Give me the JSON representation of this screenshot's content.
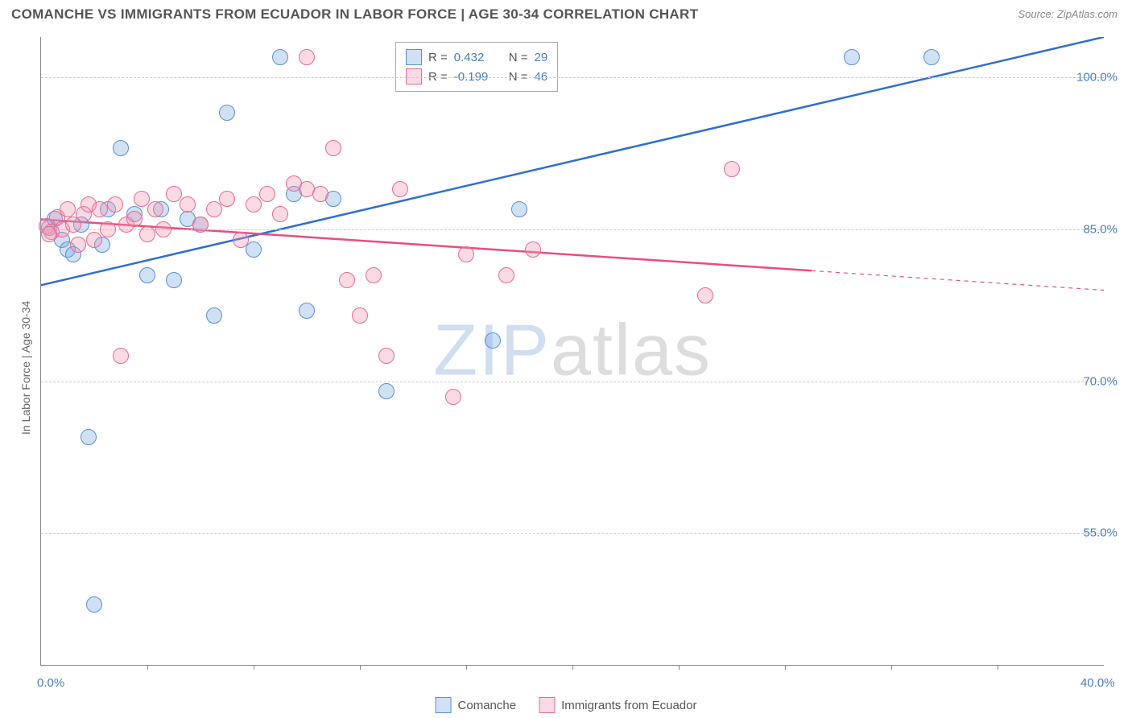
{
  "title": "COMANCHE VS IMMIGRANTS FROM ECUADOR IN LABOR FORCE | AGE 30-34 CORRELATION CHART",
  "source": "Source: ZipAtlas.com",
  "ylabel": "In Labor Force | Age 30-34",
  "watermark": {
    "part1": "ZIP",
    "part2": "atlas"
  },
  "chart": {
    "type": "scatter",
    "background_color": "#ffffff",
    "grid_color": "#cccccc",
    "axis_color": "#888888",
    "label_color": "#4a7ebb",
    "xlim": [
      0,
      40
    ],
    "ylim": [
      42,
      104
    ],
    "x_ticks_major": [
      0,
      40
    ],
    "x_ticks_minor": [
      4,
      8,
      12,
      16,
      20,
      24,
      28,
      32,
      36
    ],
    "x_tick_labels": {
      "0": "0.0%",
      "40": "40.0%"
    },
    "y_ticks": [
      55,
      70,
      85,
      100
    ],
    "y_tick_labels": {
      "55": "55.0%",
      "70": "70.0%",
      "85": "85.0%",
      "100": "100.0%"
    },
    "marker_radius": 9,
    "marker_stroke_width": 1.3,
    "line_width": 2.5,
    "series": [
      {
        "name": "Comanche",
        "fill": "rgba(120,168,224,0.35)",
        "stroke": "#5a8fd6",
        "line_color": "#2f6fd0",
        "R": "0.432",
        "N": "29",
        "trend": {
          "x1": 0,
          "y1": 79.5,
          "x2": 40,
          "y2": 104,
          "solid_until_x": 40
        },
        "points": [
          [
            0.3,
            85.2
          ],
          [
            0.5,
            86.0
          ],
          [
            0.8,
            84.0
          ],
          [
            1.0,
            83.0
          ],
          [
            1.2,
            82.5
          ],
          [
            1.5,
            85.5
          ],
          [
            1.8,
            64.5
          ],
          [
            2.0,
            48.0
          ],
          [
            2.3,
            83.5
          ],
          [
            2.5,
            87.0
          ],
          [
            3.0,
            93.0
          ],
          [
            3.5,
            86.5
          ],
          [
            4.0,
            80.5
          ],
          [
            4.5,
            87.0
          ],
          [
            5.0,
            80.0
          ],
          [
            5.5,
            86.0
          ],
          [
            6.0,
            85.5
          ],
          [
            6.5,
            76.5
          ],
          [
            7.0,
            96.5
          ],
          [
            8.0,
            83.0
          ],
          [
            9.0,
            102.0
          ],
          [
            9.5,
            88.5
          ],
          [
            10.0,
            77.0
          ],
          [
            11.0,
            88.0
          ],
          [
            13.0,
            69.0
          ],
          [
            17.0,
            74.0
          ],
          [
            18.0,
            87.0
          ],
          [
            30.5,
            102.0
          ],
          [
            33.5,
            102.0
          ]
        ]
      },
      {
        "name": "Immigrants from Ecuador",
        "fill": "rgba(240,150,175,0.35)",
        "stroke": "#e86a92",
        "line_color": "#e84f7d",
        "R": "-0.199",
        "N": "46",
        "trend": {
          "x1": 0,
          "y1": 86.0,
          "x2": 40,
          "y2": 79.0,
          "solid_until_x": 29
        },
        "points": [
          [
            0.2,
            85.3
          ],
          [
            0.4,
            84.8
          ],
          [
            0.6,
            86.2
          ],
          [
            0.8,
            85.0
          ],
          [
            1.0,
            87.0
          ],
          [
            1.2,
            85.5
          ],
          [
            1.4,
            83.5
          ],
          [
            1.6,
            86.5
          ],
          [
            1.8,
            87.5
          ],
          [
            2.0,
            84.0
          ],
          [
            2.2,
            87.0
          ],
          [
            2.5,
            85.0
          ],
          [
            2.8,
            87.5
          ],
          [
            3.0,
            72.5
          ],
          [
            3.2,
            85.5
          ],
          [
            3.5,
            86.0
          ],
          [
            3.8,
            88.0
          ],
          [
            4.0,
            84.5
          ],
          [
            4.3,
            87.0
          ],
          [
            4.6,
            85.0
          ],
          [
            5.0,
            88.5
          ],
          [
            5.5,
            87.5
          ],
          [
            6.0,
            85.5
          ],
          [
            6.5,
            87.0
          ],
          [
            7.0,
            88.0
          ],
          [
            7.5,
            84.0
          ],
          [
            8.0,
            87.5
          ],
          [
            8.5,
            88.5
          ],
          [
            9.0,
            86.5
          ],
          [
            9.5,
            89.5
          ],
          [
            10.0,
            102.0
          ],
          [
            10.0,
            89.0
          ],
          [
            10.5,
            88.5
          ],
          [
            11.0,
            93.0
          ],
          [
            11.5,
            80.0
          ],
          [
            12.0,
            76.5
          ],
          [
            12.5,
            80.5
          ],
          [
            13.0,
            72.5
          ],
          [
            13.5,
            89.0
          ],
          [
            15.5,
            68.5
          ],
          [
            16.0,
            82.5
          ],
          [
            17.5,
            80.5
          ],
          [
            18.5,
            83.0
          ],
          [
            25.0,
            78.5
          ],
          [
            26.0,
            91.0
          ],
          [
            0.3,
            84.5
          ]
        ]
      }
    ]
  },
  "legend_top": {
    "r_label": "R =",
    "n_label": "N ="
  },
  "legend_bottom": {
    "items": [
      "Comanche",
      "Immigrants from Ecuador"
    ]
  }
}
